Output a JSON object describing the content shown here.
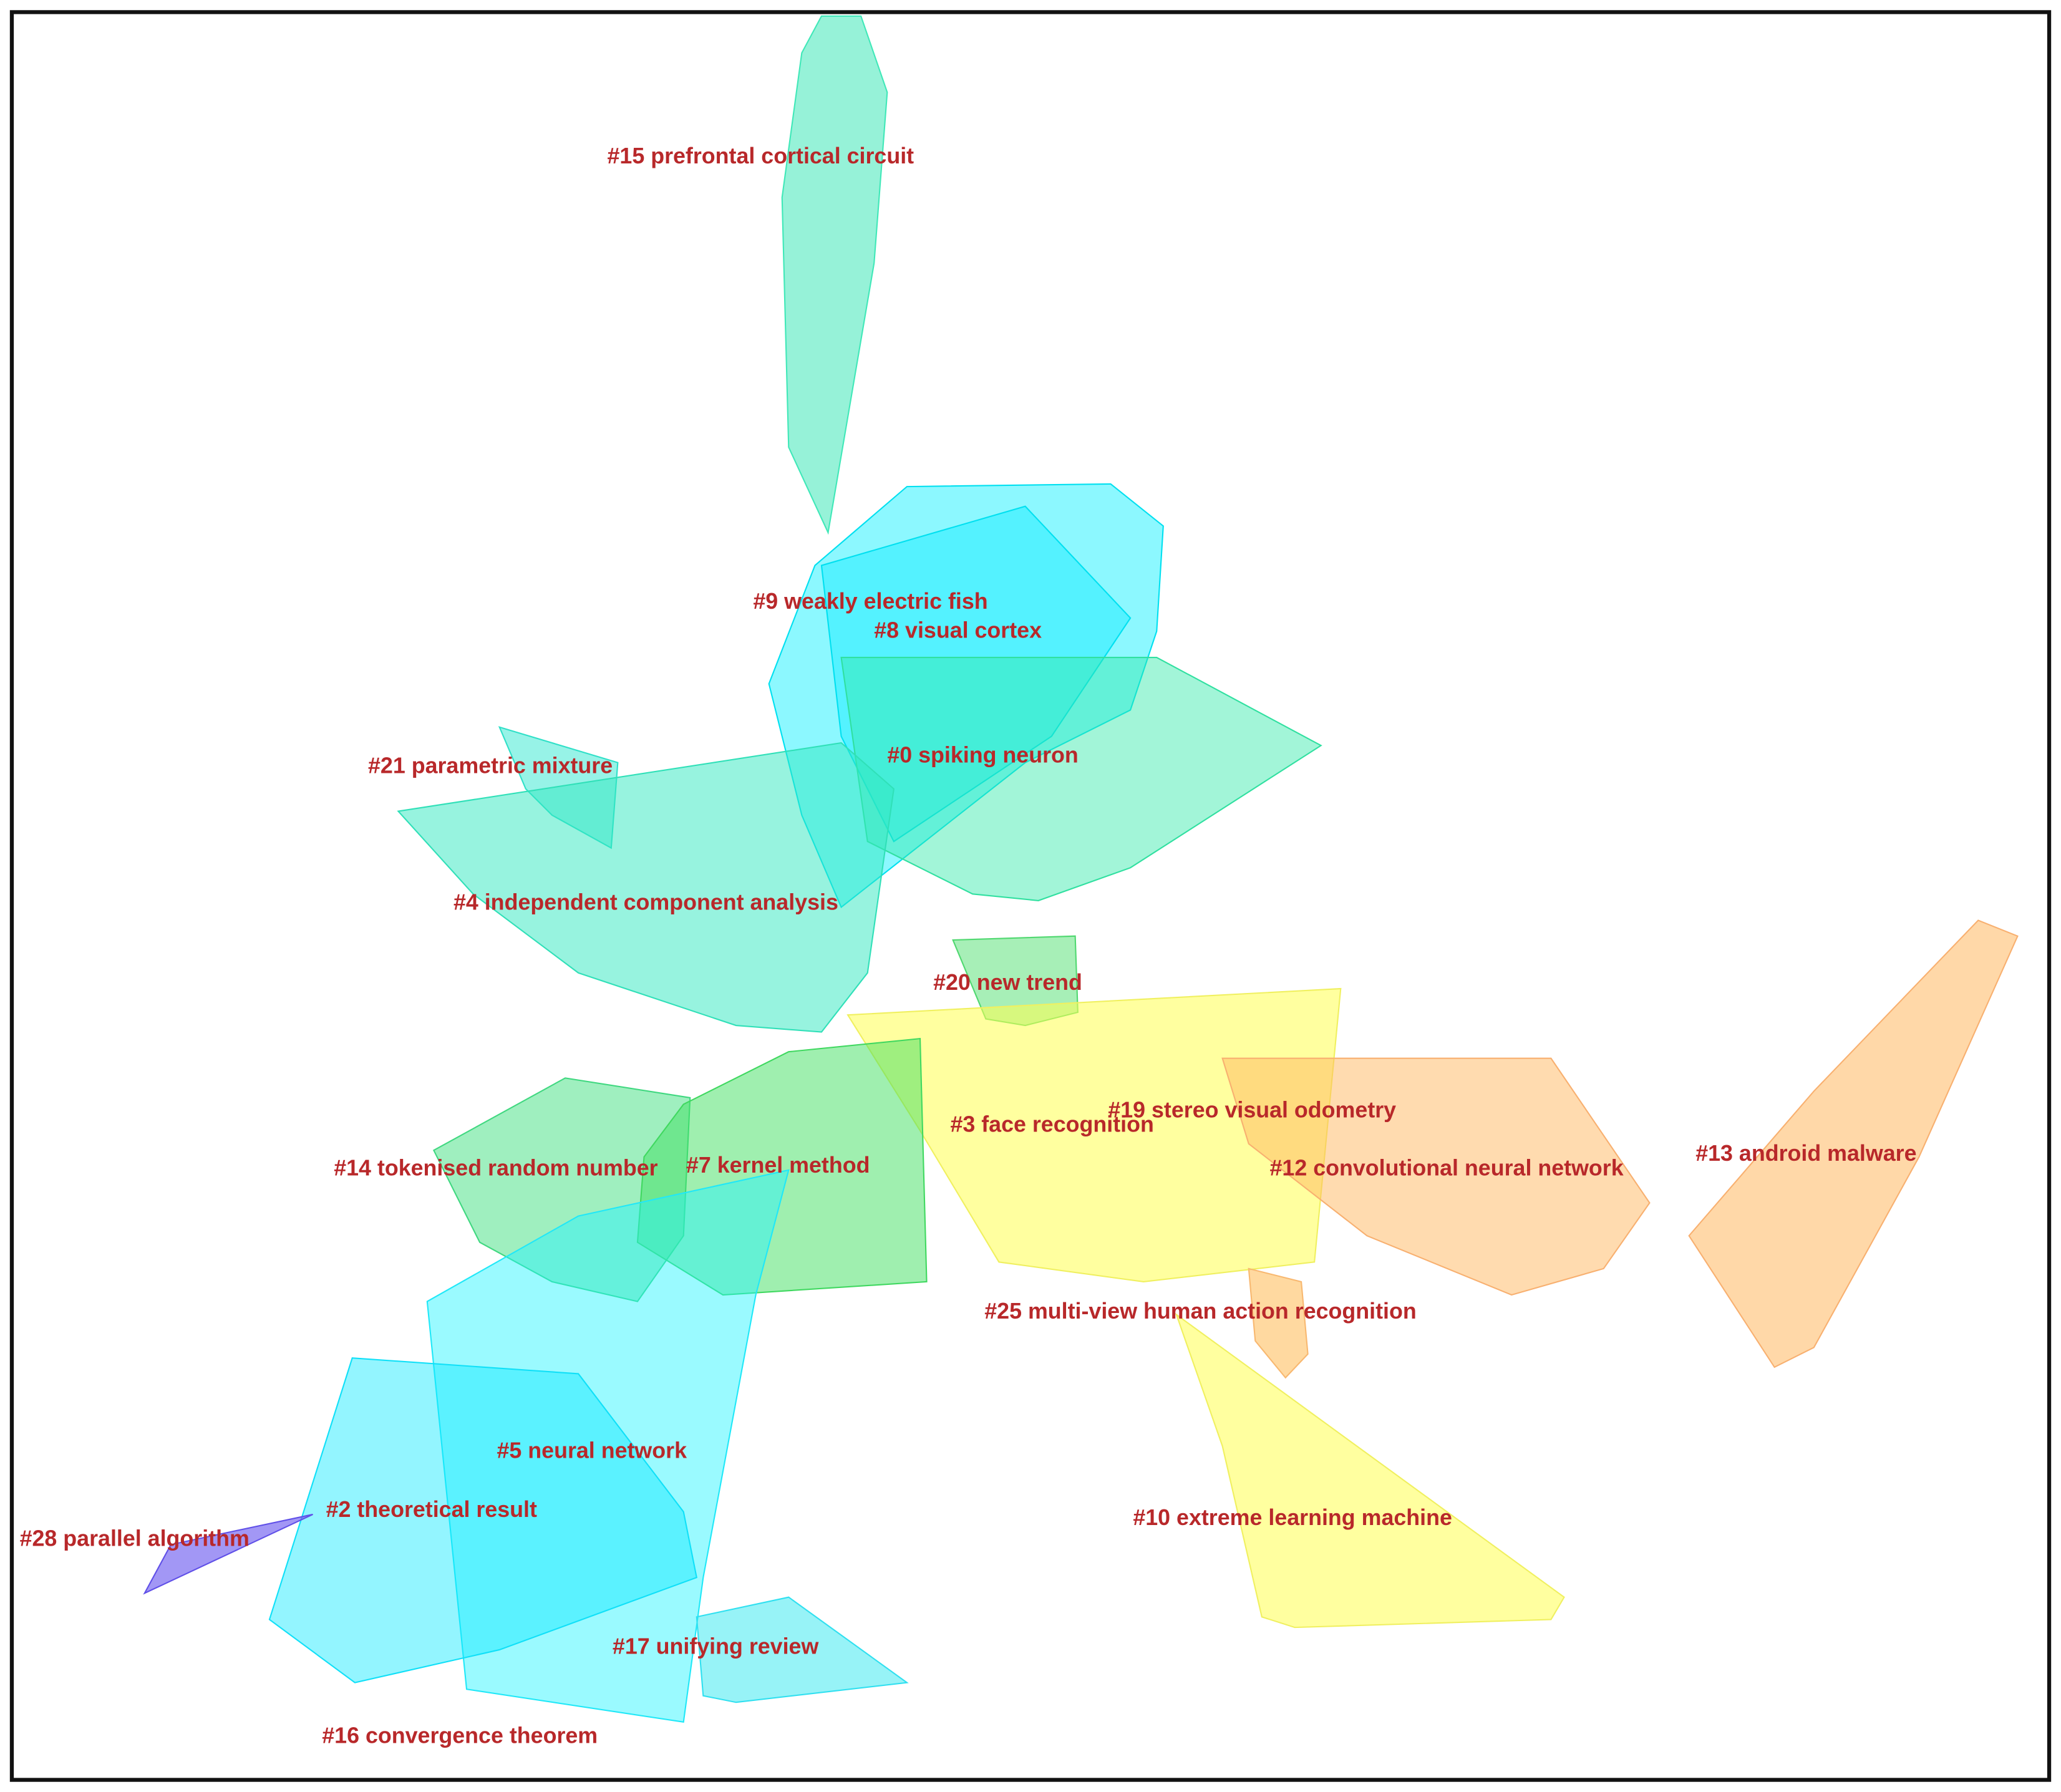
{
  "clusters": [
    {
      "label": "#15 prefrontal cortical circuit"
    },
    {
      "label": "#9 weakly electric fish"
    },
    {
      "label": "#8 visual cortex"
    },
    {
      "label": "#0 spiking neuron"
    },
    {
      "label": "#21 parametric mixture"
    },
    {
      "label": "#4 independent component analysis"
    },
    {
      "label": "#20 new trend"
    },
    {
      "label": "#19 stereo visual odometry"
    },
    {
      "label": "#3 face recognition"
    },
    {
      "label": "#12 convolutional neural network"
    },
    {
      "label": "#13 android malware"
    },
    {
      "label": "#14 tokenised random number"
    },
    {
      "label": "#7 kernel method"
    },
    {
      "label": "#25 multi-view human action recognition"
    },
    {
      "label": "#5 neural network"
    },
    {
      "label": "#2 theoretical result"
    },
    {
      "label": "#28 parallel algorithm"
    },
    {
      "label": "#10 extreme learning machine"
    },
    {
      "label": "#17 unifying review"
    },
    {
      "label": "#16 convergence theorem"
    }
  ]
}
